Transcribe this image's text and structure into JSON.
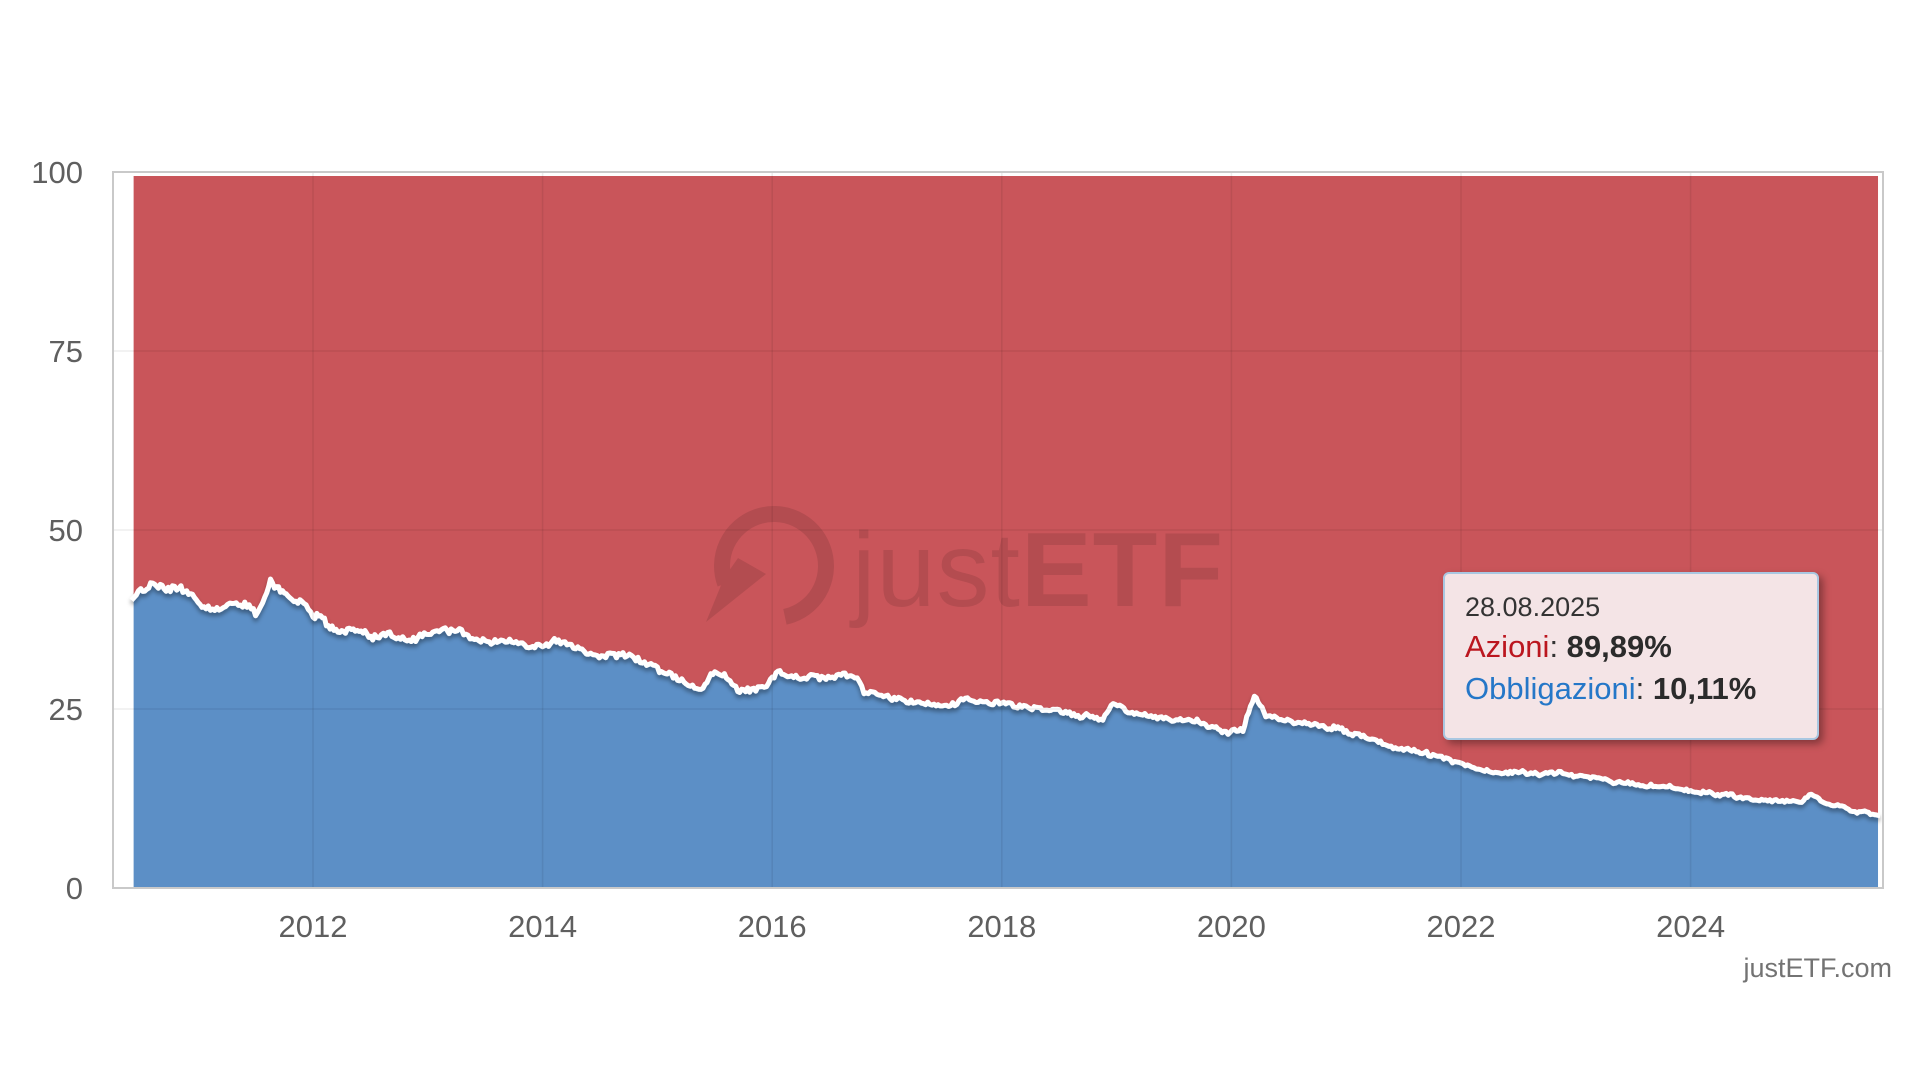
{
  "credit": {
    "text": "justETF.com"
  },
  "watermark": {
    "text_regular": "just",
    "text_bold": "ETF"
  },
  "tooltip": {
    "date": "28.08.2025",
    "rows": [
      {
        "label": "Azioni",
        "value": "89,89%",
        "color": "#bb161f"
      },
      {
        "label": "Obbligazioni",
        "value": "10,11%",
        "color": "#2577c8"
      }
    ]
  },
  "chart_data": {
    "type": "area",
    "stacked": true,
    "stack_total": 100,
    "title": "",
    "xlabel": "",
    "ylabel": "",
    "x_ticks": [
      2012,
      2014,
      2016,
      2018,
      2020,
      2022,
      2024
    ],
    "y_ticks": [
      0,
      25,
      50,
      75,
      100
    ],
    "x_range": [
      2010.42,
      2025.68
    ],
    "ylim": [
      0,
      100
    ],
    "grid": true,
    "legend_position": "none",
    "colors": {
      "azioni_fill": "#c9555a",
      "obbligazioni_fill": "#5c8fc6",
      "boundary_stroke": "#ffffff",
      "gridline_over_area": "rgba(0,0,0,0.07)",
      "plot_border": "#c9c9c9",
      "axis_label": "#5f5f5f"
    },
    "series": [
      {
        "name": "Azioni",
        "color": "#c9555a",
        "definition": "complement_to_100_of_Obbligazioni",
        "last_value": 89.89
      },
      {
        "name": "Obbligazioni",
        "color": "#5c8fc6",
        "last_value": 10.11,
        "points": [
          [
            2010.42,
            40.2
          ],
          [
            2010.5,
            41.6
          ],
          [
            2010.62,
            42.4
          ],
          [
            2010.72,
            41.4
          ],
          [
            2010.85,
            41.9
          ],
          [
            2010.95,
            41.3
          ],
          [
            2011.05,
            38.8
          ],
          [
            2011.2,
            39.0
          ],
          [
            2011.35,
            39.6
          ],
          [
            2011.5,
            38.7
          ],
          [
            2011.58,
            40.5
          ],
          [
            2011.63,
            43.1
          ],
          [
            2011.7,
            41.6
          ],
          [
            2011.8,
            40.4
          ],
          [
            2011.92,
            39.8
          ],
          [
            2012.0,
            38.4
          ],
          [
            2012.1,
            37.2
          ],
          [
            2012.2,
            36.0
          ],
          [
            2012.3,
            35.6
          ],
          [
            2012.42,
            36.1
          ],
          [
            2012.52,
            34.9
          ],
          [
            2012.65,
            35.4
          ],
          [
            2012.8,
            35.0
          ],
          [
            2012.95,
            35.1
          ],
          [
            2013.1,
            36.0
          ],
          [
            2013.22,
            36.2
          ],
          [
            2013.35,
            35.2
          ],
          [
            2013.5,
            34.4
          ],
          [
            2013.62,
            34.9
          ],
          [
            2013.75,
            34.2
          ],
          [
            2013.88,
            33.7
          ],
          [
            2014.0,
            34.1
          ],
          [
            2014.12,
            34.4
          ],
          [
            2014.25,
            33.6
          ],
          [
            2014.4,
            33.0
          ],
          [
            2014.55,
            32.3
          ],
          [
            2014.7,
            32.6
          ],
          [
            2014.85,
            31.7
          ],
          [
            2015.0,
            30.6
          ],
          [
            2015.12,
            29.6
          ],
          [
            2015.25,
            28.4
          ],
          [
            2015.38,
            27.9
          ],
          [
            2015.5,
            30.2
          ],
          [
            2015.6,
            29.3
          ],
          [
            2015.7,
            27.4
          ],
          [
            2015.82,
            27.8
          ],
          [
            2015.95,
            28.3
          ],
          [
            2016.05,
            30.6
          ],
          [
            2016.15,
            29.2
          ],
          [
            2016.3,
            29.7
          ],
          [
            2016.45,
            29.3
          ],
          [
            2016.6,
            29.8
          ],
          [
            2016.72,
            29.4
          ],
          [
            2016.8,
            27.3
          ],
          [
            2016.95,
            26.8
          ],
          [
            2017.1,
            26.2
          ],
          [
            2017.3,
            25.8
          ],
          [
            2017.5,
            25.6
          ],
          [
            2017.7,
            26.2
          ],
          [
            2017.85,
            25.8
          ],
          [
            2018.0,
            26.1
          ],
          [
            2018.12,
            25.3
          ],
          [
            2018.3,
            24.9
          ],
          [
            2018.5,
            24.5
          ],
          [
            2018.7,
            24.0
          ],
          [
            2018.88,
            23.7
          ],
          [
            2018.97,
            25.9
          ],
          [
            2019.1,
            24.4
          ],
          [
            2019.3,
            24.1
          ],
          [
            2019.5,
            23.6
          ],
          [
            2019.7,
            23.3
          ],
          [
            2019.85,
            22.5
          ],
          [
            2019.97,
            21.7
          ],
          [
            2020.1,
            22.0
          ],
          [
            2020.2,
            27.3
          ],
          [
            2020.3,
            24.1
          ],
          [
            2020.45,
            23.4
          ],
          [
            2020.6,
            23.0
          ],
          [
            2020.8,
            22.5
          ],
          [
            2021.0,
            21.9
          ],
          [
            2021.15,
            21.1
          ],
          [
            2021.3,
            20.3
          ],
          [
            2021.5,
            19.5
          ],
          [
            2021.7,
            18.9
          ],
          [
            2021.85,
            18.2
          ],
          [
            2022.0,
            17.4
          ],
          [
            2022.15,
            16.5
          ],
          [
            2022.3,
            16.1
          ],
          [
            2022.5,
            16.4
          ],
          [
            2022.7,
            15.8
          ],
          [
            2022.85,
            16.0
          ],
          [
            2023.0,
            15.8
          ],
          [
            2023.2,
            15.2
          ],
          [
            2023.4,
            14.7
          ],
          [
            2023.6,
            14.4
          ],
          [
            2023.8,
            14.2
          ],
          [
            2024.0,
            13.7
          ],
          [
            2024.2,
            13.2
          ],
          [
            2024.4,
            12.8
          ],
          [
            2024.6,
            12.4
          ],
          [
            2024.8,
            12.1
          ],
          [
            2024.95,
            12.0
          ],
          [
            2025.05,
            13.4
          ],
          [
            2025.15,
            11.9
          ],
          [
            2025.3,
            11.4
          ],
          [
            2025.45,
            10.7
          ],
          [
            2025.55,
            10.4
          ],
          [
            2025.65,
            10.11
          ]
        ]
      }
    ]
  }
}
